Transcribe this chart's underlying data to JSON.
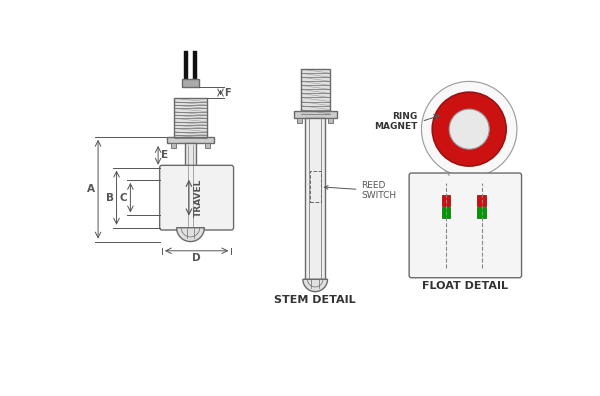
{
  "bg_color": "#ffffff",
  "line_color": "#6a6a6a",
  "dim_color": "#555555",
  "red_color": "#cc1111",
  "green_color": "#009900",
  "stem_detail_label": "STEM DETAIL",
  "float_detail_label": "FLOAT DETAIL",
  "ring_magnet_label": "RING\nMAGNET",
  "reed_switch_label": "REED\nSWITCH",
  "travel_label": "TRAVEL",
  "dim_labels": [
    "A",
    "B",
    "C",
    "D",
    "E",
    "F"
  ]
}
